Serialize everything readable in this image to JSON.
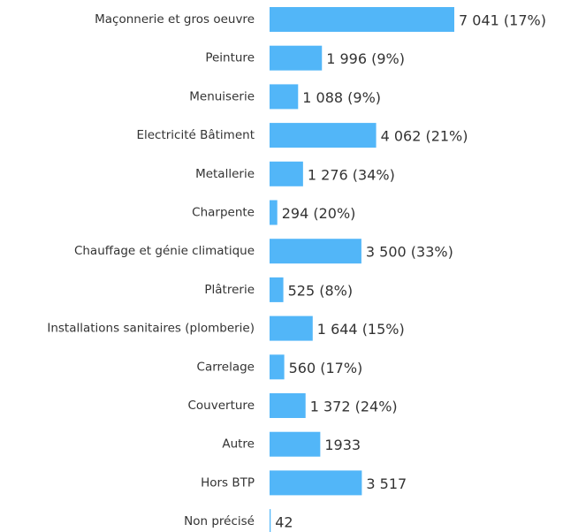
{
  "chart_data": {
    "type": "bar",
    "orientation": "horizontal",
    "color": "#52b6f8",
    "categories": [
      "Maçonnerie et gros oeuvre",
      "Peinture",
      "Menuiserie",
      "Electricité Bâtiment",
      "Metallerie",
      "Charpente",
      "Chauffage et génie climatique",
      "Plâtrerie",
      "Installations sanitaires (plomberie)",
      "Carrelage",
      "Couverture",
      "Autre",
      "Hors BTP",
      "Non précisé"
    ],
    "values": [
      7041,
      1996,
      1088,
      4062,
      1276,
      294,
      3500,
      525,
      1644,
      560,
      1372,
      1933,
      3517,
      42
    ],
    "value_labels": [
      "7 041 (17%)",
      "1 996 (9%)",
      "1 088 (9%)",
      "4 062 (21%)",
      "1 276 (34%)",
      "294 (20%)",
      "3 500 (33%)",
      "525 (8%)",
      "1 644 (15%)",
      "560 (17%)",
      "1 372 (24%)",
      "1933",
      "3 517",
      "42"
    ]
  }
}
